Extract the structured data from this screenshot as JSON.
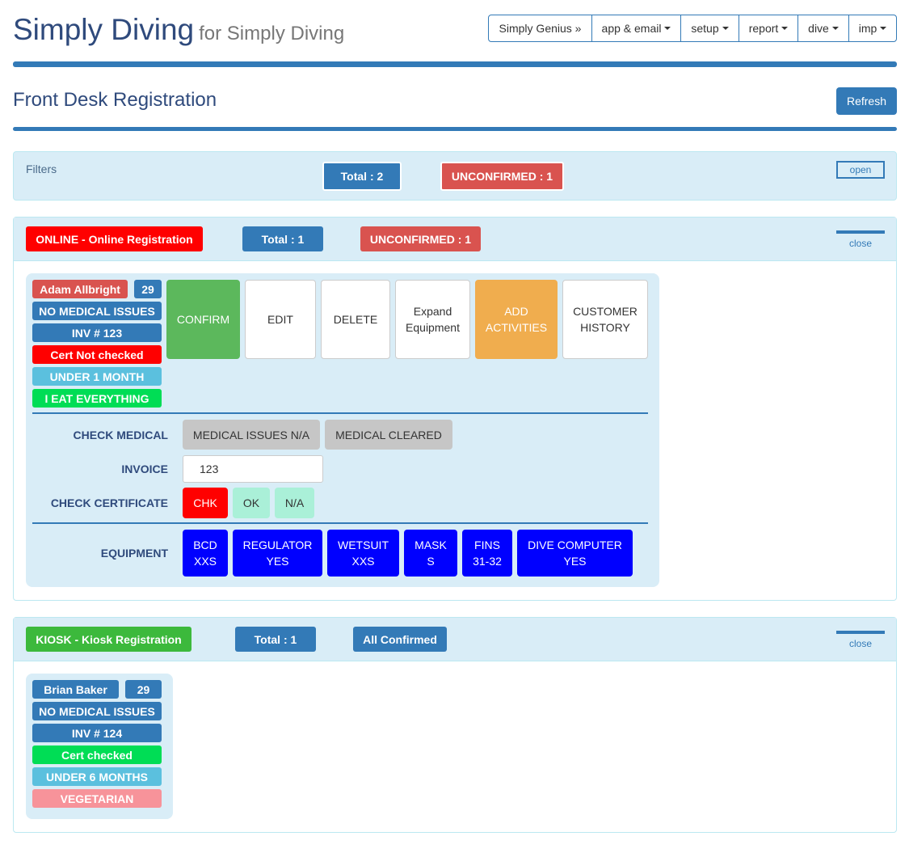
{
  "header": {
    "brand": "Simply Diving",
    "brand_sub": "for Simply Diving",
    "nav": [
      "Simply Genius »",
      "app & email",
      "setup",
      "report",
      "dive",
      "imp"
    ]
  },
  "page": {
    "title": "Front Desk Registration",
    "refresh": "Refresh"
  },
  "filters": {
    "label": "Filters",
    "total": "Total : 2",
    "unconfirmed": "UNCONFIRMED : 1",
    "toggle": "open"
  },
  "online": {
    "title": "ONLINE - Online Registration",
    "total": "Total : 1",
    "status": "UNCONFIRMED : 1",
    "toggle": "close",
    "customer": {
      "name": "Adam Allbright",
      "age": "29",
      "medical": "NO MEDICAL ISSUES",
      "invoice_tag": "INV # 123",
      "cert": "Cert Not checked",
      "experience": "UNDER 1 MONTH",
      "diet": "I EAT EVERYTHING"
    },
    "actions": {
      "confirm": "CONFIRM",
      "edit": "EDIT",
      "delete": "DELETE",
      "expand_1": "Expand",
      "expand_2": "Equipment",
      "add_1": "ADD",
      "add_2": "ACTIVITIES",
      "history_1": "CUSTOMER",
      "history_2": "HISTORY"
    },
    "check_medical": {
      "label": "CHECK MEDICAL",
      "na": "MEDICAL ISSUES N/A",
      "cleared": "MEDICAL CLEARED"
    },
    "invoice": {
      "label": "INVOICE",
      "value": "123"
    },
    "check_cert": {
      "label": "CHECK CERTIFICATE",
      "chk": "CHK",
      "ok": "OK",
      "na": "N/A"
    },
    "equipment": {
      "label": "EQUIPMENT",
      "items": [
        {
          "name": "BCD",
          "value": "XXS"
        },
        {
          "name": "REGULATOR",
          "value": "YES"
        },
        {
          "name": "WETSUIT",
          "value": "XXS"
        },
        {
          "name": "MASK",
          "value": "S"
        },
        {
          "name": "FINS",
          "value": "31-32"
        },
        {
          "name": "DIVE COMPUTER",
          "value": "YES"
        }
      ]
    }
  },
  "kiosk": {
    "title": "KIOSK - Kiosk Registration",
    "total": "Total : 1",
    "status": "All Confirmed",
    "toggle": "close",
    "customer": {
      "name": "Brian Baker",
      "age": "29",
      "medical": "NO MEDICAL ISSUES",
      "invoice_tag": "INV # 124",
      "cert": "Cert checked",
      "experience": "UNDER 6 MONTHS",
      "diet": "VEGETARIAN"
    }
  },
  "colors": {
    "primary": "#337ab7",
    "danger": "#d9534f",
    "online_red": "#ff0000",
    "kiosk_green": "#3cb93c",
    "confirm_green": "#5cb85c",
    "cert_green": "#00dd55",
    "info_teal": "#5bc0de",
    "warning_orange": "#f0ad4e",
    "equipment_blue": "#0000ff",
    "vegetarian_pink": "#f7939a",
    "mint": "#aaf0d8"
  }
}
